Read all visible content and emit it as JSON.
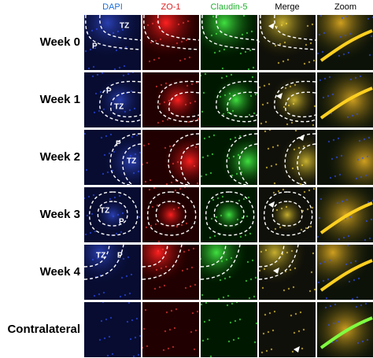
{
  "columns": [
    "DAPI",
    "ZO-1",
    "Claudin-5",
    "Merge",
    "Zoom"
  ],
  "rows": [
    {
      "label": "Week 0",
      "annotations": [
        "TZ",
        "P"
      ]
    },
    {
      "label": "Week 1",
      "annotations": [
        "P",
        "TZ"
      ]
    },
    {
      "label": "Week 2",
      "annotations": [
        "P",
        "TZ"
      ]
    },
    {
      "label": "Week 3",
      "annotations": [
        "TZ",
        "P"
      ]
    },
    {
      "label": "Week 4",
      "annotations": [
        "TZ",
        "P"
      ]
    },
    {
      "label": "Contralateral",
      "annotations": []
    }
  ]
}
